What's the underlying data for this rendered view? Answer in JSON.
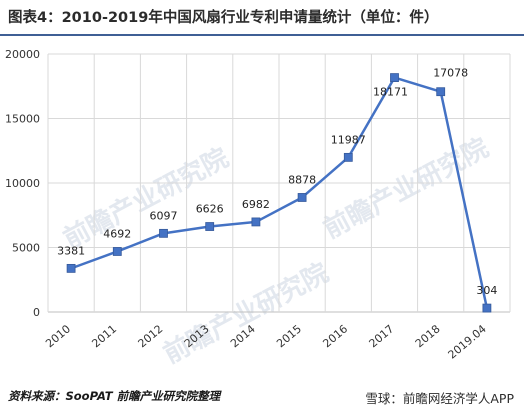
{
  "header": {
    "title": "图表4：2010-2019年中国风扇行业专利申请量统计（单位：件）"
  },
  "footer": {
    "source": "资料来源：SooPAT 前瞻产业研究院整理",
    "credit": "雪球：前瞻网经济学人APP"
  },
  "watermark": "前瞻产业研究院",
  "colors": {
    "line": "#4472c4",
    "marker": "#4472c4",
    "title_rule": "#3f5f95"
  },
  "chart_data": {
    "type": "line",
    "categories": [
      "2010",
      "2011",
      "2012",
      "2013",
      "2014",
      "2015",
      "2016",
      "2017",
      "2018",
      "2019.04"
    ],
    "values": [
      3381,
      4692,
      6097,
      6626,
      6982,
      8878,
      11987,
      18171,
      17078,
      304
    ],
    "ylim": [
      0,
      20000
    ],
    "yticks": [
      0,
      5000,
      10000,
      15000,
      20000
    ],
    "grid": "y-major",
    "legend": "none"
  }
}
